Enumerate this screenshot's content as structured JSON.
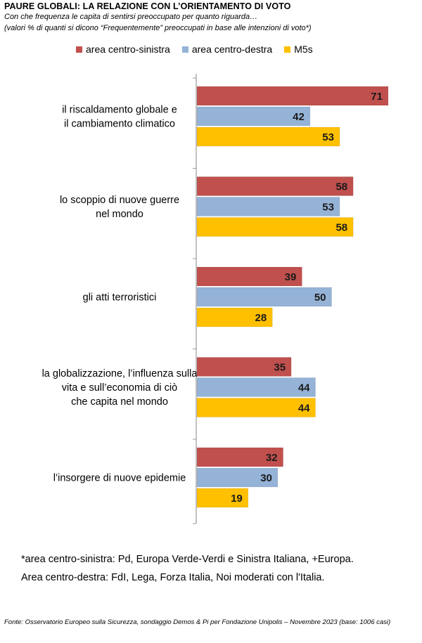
{
  "title": "PAURE GLOBALI: LA RELAZIONE CON L’ORIENTAMENTO DI VOTO",
  "subtitle_line1": "Con che frequenza le capita di sentirsi preoccupato per quanto riguarda…",
  "subtitle_line2": "(valori % di quanti si dicono “Frequentemente” preoccupati in base alle intenzioni di voto*)",
  "footnote": "*area centro-sinistra: Pd, Europa Verde-Verdi e Sinistra Italiana, +Europa. Area centro-destra: FdI, Lega, Forza Italia, Noi moderati con l'Italia.",
  "source": "Fonte: Osservatorio Europeo sulla Sicurezza, sondaggio Demos & Pi per Fondazione Unipolis – Novembre 2023 (base: 1006 casi)",
  "chart_data": {
    "type": "bar",
    "orientation": "horizontal",
    "categories": [
      [
        "il riscaldamento globale e",
        "il cambiamento climatico"
      ],
      [
        "lo scoppio di nuove guerre",
        "nel mondo"
      ],
      [
        "gli atti terroristici"
      ],
      [
        "la globalizzazione, l’influenza sulla",
        "vita e sull’economia di ciò",
        "che capita nel mondo"
      ],
      [
        "l’insorgere di nuove epidemie"
      ]
    ],
    "series": [
      {
        "name": "area centro-sinistra",
        "color": "#c0504d",
        "values": [
          71,
          58,
          39,
          35,
          32
        ]
      },
      {
        "name": "area centro-destra",
        "color": "#95b3d7",
        "values": [
          42,
          53,
          50,
          44,
          30
        ]
      },
      {
        "name": "M5s",
        "color": "#ffc000",
        "values": [
          53,
          58,
          28,
          44,
          19
        ]
      }
    ],
    "xlim": [
      0,
      100
    ],
    "data_labels": true,
    "legend_position": "top",
    "grid": false
  }
}
